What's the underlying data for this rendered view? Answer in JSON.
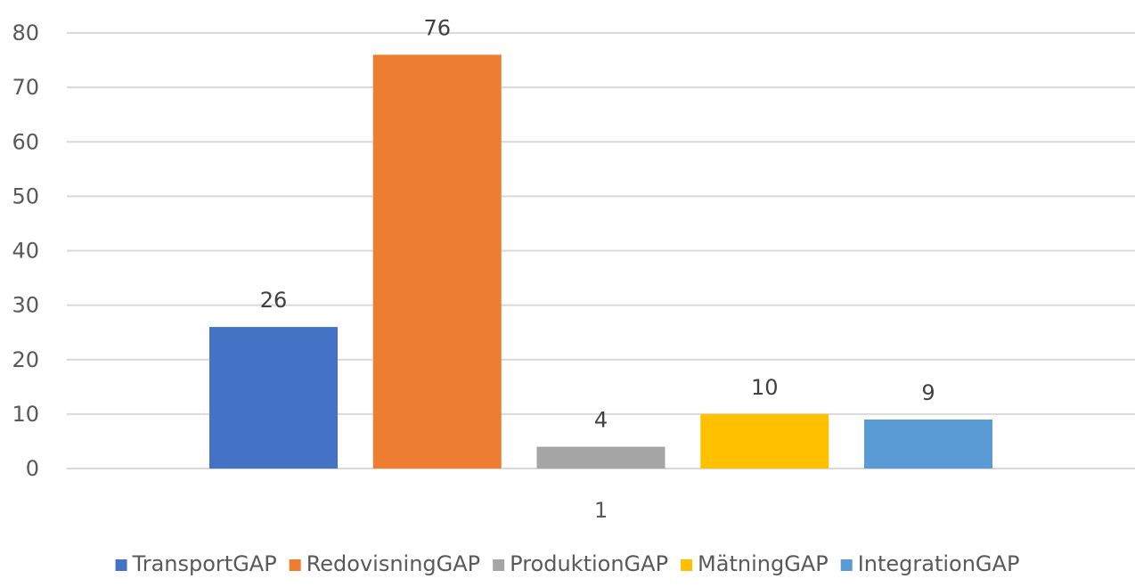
{
  "chart_data": {
    "type": "bar",
    "categories": [
      "1"
    ],
    "series": [
      {
        "name": "TransportGAP",
        "values": [
          26
        ],
        "color": "#4472C4"
      },
      {
        "name": "RedovisningGAP",
        "values": [
          76
        ],
        "color": "#ED7D31"
      },
      {
        "name": "ProduktionGAP",
        "values": [
          4
        ],
        "color": "#A5A5A5"
      },
      {
        "name": "MätningGAP",
        "values": [
          10
        ],
        "color": "#FFC000"
      },
      {
        "name": "IntegrationGAP",
        "values": [
          9
        ],
        "color": "#5B9BD5"
      }
    ],
    "title": "",
    "xlabel": "",
    "ylabel": "",
    "ylim": [
      0,
      80
    ],
    "yticks": [
      0,
      10,
      20,
      30,
      40,
      50,
      60,
      70,
      80
    ],
    "grid": true,
    "legend_position": "bottom",
    "data_labels": true
  }
}
